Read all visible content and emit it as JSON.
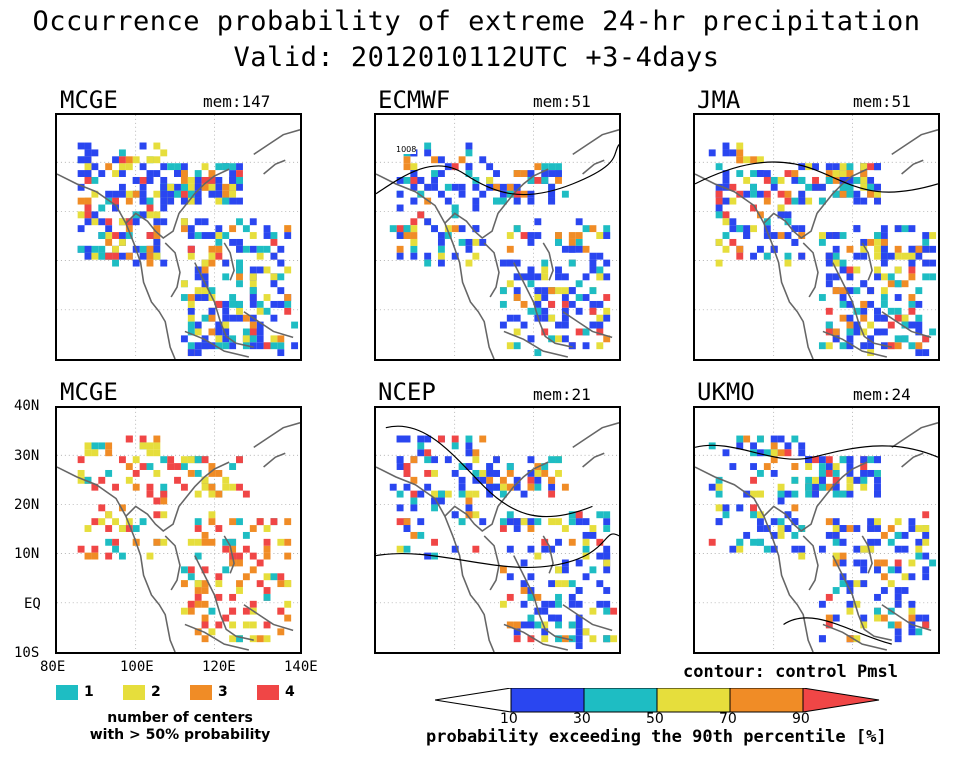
{
  "title_line1": "Occurrence probability of extreme 24-hr precipitation",
  "title_line2": "Valid: 2012010112UTC +3-4days",
  "panels": [
    {
      "name": "MCGE",
      "members": "mem:147"
    },
    {
      "name": "ECMWF",
      "members": "mem:51"
    },
    {
      "name": "JMA",
      "members": "mem:51"
    },
    {
      "name": "MCGE",
      "members": ""
    },
    {
      "name": "NCEP",
      "members": "mem:21"
    },
    {
      "name": "UKMO",
      "members": "mem:24"
    }
  ],
  "contour_label": "1008",
  "lat_ticks": [
    "40N",
    "30N",
    "20N",
    "10N",
    "EQ",
    "10S"
  ],
  "lon_ticks": [
    "80E",
    "100E",
    "120E",
    "140E"
  ],
  "centers_legend": {
    "items": [
      {
        "label": "1",
        "color": "#1ebdc3"
      },
      {
        "label": "2",
        "color": "#e6de3c"
      },
      {
        "label": "3",
        "color": "#f08c26"
      },
      {
        "label": "4",
        "color": "#f04646"
      }
    ],
    "note_line1": "number of centers",
    "note_line2": "with > 50% probability"
  },
  "colorbar": {
    "contour_note": "contour: control Pmsl",
    "ticks": [
      "10",
      "30",
      "50",
      "70",
      "90"
    ],
    "colors": [
      "#ffffff",
      "#2a46f0",
      "#1ebdc3",
      "#e6de3c",
      "#f08c26",
      "#f04646"
    ],
    "label": "probability exceeding the 90th percentile [%]"
  }
}
